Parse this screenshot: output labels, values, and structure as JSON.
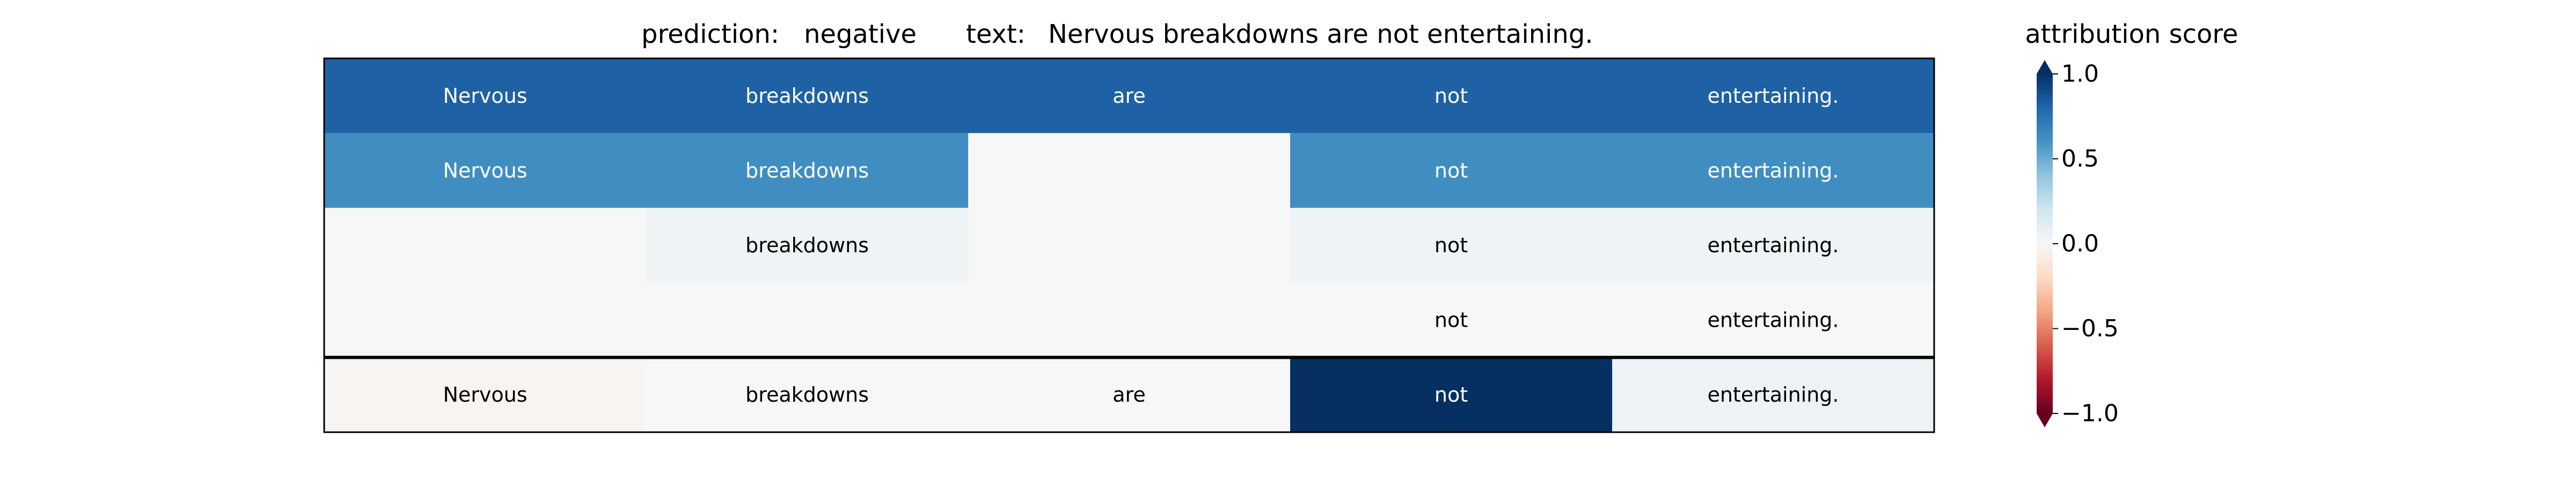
{
  "header": {
    "prediction_label": "prediction:",
    "prediction_value": "negative",
    "text_label": "text:",
    "text_value": "Nervous breakdowns are not entertaining.",
    "colorbar_title": "attribution score"
  },
  "colors": {
    "colormap": "RdBu",
    "scale": [
      "#67001f",
      "#b2182b",
      "#d6604d",
      "#f4a582",
      "#fddbc7",
      "#f7f7f7",
      "#d1e5f0",
      "#92c5de",
      "#4393c3",
      "#2166ac",
      "#053061"
    ],
    "light_text": "#ffffff",
    "dark_text": "#000000",
    "separator": "#000000"
  },
  "chart_data": {
    "type": "heatmap",
    "title": "",
    "columns": [
      "Nervous",
      "breakdowns",
      "are",
      "not",
      "entertaining."
    ],
    "vmin": -1.0,
    "vmax": 1.0,
    "colorbar_ticks": [
      "1.0",
      "0.5",
      "0.0",
      "−0.5",
      "−1.0"
    ],
    "colorbar_tick_values": [
      1.0,
      0.5,
      0.0,
      -0.5,
      -1.0
    ],
    "colorbar_extend": "both",
    "separator_before_last_row": true,
    "rows": [
      {
        "cells": [
          {
            "text": "Nervous",
            "value": 0.82
          },
          {
            "text": "breakdowns",
            "value": 0.82
          },
          {
            "text": "are",
            "value": 0.82
          },
          {
            "text": "not",
            "value": 0.82
          },
          {
            "text": "entertaining.",
            "value": 0.82
          }
        ]
      },
      {
        "cells": [
          {
            "text": "Nervous",
            "value": 0.62
          },
          {
            "text": "breakdowns",
            "value": 0.62
          },
          {
            "text": "",
            "value": 0.0
          },
          {
            "text": "not",
            "value": 0.62
          },
          {
            "text": "entertaining.",
            "value": 0.62
          }
        ]
      },
      {
        "cells": [
          {
            "text": "",
            "value": 0.0
          },
          {
            "text": "breakdowns",
            "value": 0.05
          },
          {
            "text": "",
            "value": 0.0
          },
          {
            "text": "not",
            "value": 0.05
          },
          {
            "text": "entertaining.",
            "value": 0.05
          }
        ]
      },
      {
        "cells": [
          {
            "text": "",
            "value": 0.0
          },
          {
            "text": "",
            "value": 0.0
          },
          {
            "text": "",
            "value": 0.0
          },
          {
            "text": "not",
            "value": 0.0
          },
          {
            "text": "entertaining.",
            "value": 0.0
          }
        ]
      },
      {
        "cells": [
          {
            "text": "Nervous",
            "value": -0.02
          },
          {
            "text": "breakdowns",
            "value": 0.0
          },
          {
            "text": "are",
            "value": 0.0
          },
          {
            "text": "not",
            "value": 1.0
          },
          {
            "text": "entertaining.",
            "value": 0.06
          }
        ]
      }
    ]
  }
}
